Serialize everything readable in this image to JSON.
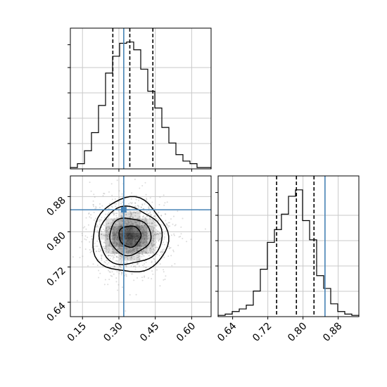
{
  "chart_data": [
    {
      "type": "histogram",
      "panel": "x-marginal",
      "xlim": [
        0.1,
        0.68
      ],
      "grid": true,
      "bin_edges": [
        0.1,
        0.129,
        0.158,
        0.187,
        0.216,
        0.245,
        0.274,
        0.303,
        0.332,
        0.361,
        0.39,
        0.419,
        0.448,
        0.477,
        0.506,
        0.535,
        0.564,
        0.593,
        0.622,
        0.651,
        0.68
      ],
      "counts": [
        0.01,
        0.04,
        0.14,
        0.28,
        0.49,
        0.74,
        0.87,
        0.97,
        0.98,
        0.92,
        0.77,
        0.6,
        0.47,
        0.32,
        0.2,
        0.11,
        0.06,
        0.04,
        0.01,
        0.01
      ],
      "quantile_lines": [
        0.275,
        0.345,
        0.44
      ],
      "truth_line": 0.32
    },
    {
      "type": "scatter-contour",
      "panel": "joint",
      "xlim": [
        0.1,
        0.68
      ],
      "ylim": [
        0.607,
        0.927
      ],
      "xticks": [
        "0.15",
        "0.30",
        "0.45",
        "0.60"
      ],
      "yticks": [
        "0.64",
        "0.72",
        "0.80",
        "0.88"
      ],
      "grid": true,
      "center": [
        0.345,
        0.79
      ],
      "contours": [
        {
          "rx": 0.045,
          "ry": 0.024
        },
        {
          "rx": 0.085,
          "ry": 0.042
        },
        {
          "rx": 0.13,
          "ry": 0.065
        },
        {
          "rx": 0.155,
          "ry": 0.085
        }
      ],
      "truth_point": [
        0.32,
        0.85
      ]
    },
    {
      "type": "histogram",
      "panel": "y-marginal",
      "xlim": [
        0.607,
        0.927
      ],
      "xticks": [
        "0.64",
        "0.72",
        "0.80",
        "0.88"
      ],
      "grid": true,
      "bin_edges": [
        0.607,
        0.623,
        0.639,
        0.655,
        0.671,
        0.687,
        0.703,
        0.719,
        0.735,
        0.751,
        0.767,
        0.783,
        0.799,
        0.815,
        0.831,
        0.847,
        0.863,
        0.879,
        0.895,
        0.911,
        0.927
      ],
      "counts": [
        0.01,
        0.02,
        0.04,
        0.06,
        0.09,
        0.2,
        0.37,
        0.58,
        0.68,
        0.8,
        0.94,
        0.99,
        0.75,
        0.6,
        0.32,
        0.22,
        0.1,
        0.04,
        0.02,
        0.01
      ],
      "quantile_lines": [
        0.74,
        0.785,
        0.825
      ],
      "truth_line": 0.85
    }
  ],
  "colors": {
    "truth": "#4682b4",
    "hist": "#000000",
    "quantile": "#000000",
    "grid": "#c9c9c9",
    "scatter": "#9a9a9a",
    "density": "#000000"
  }
}
